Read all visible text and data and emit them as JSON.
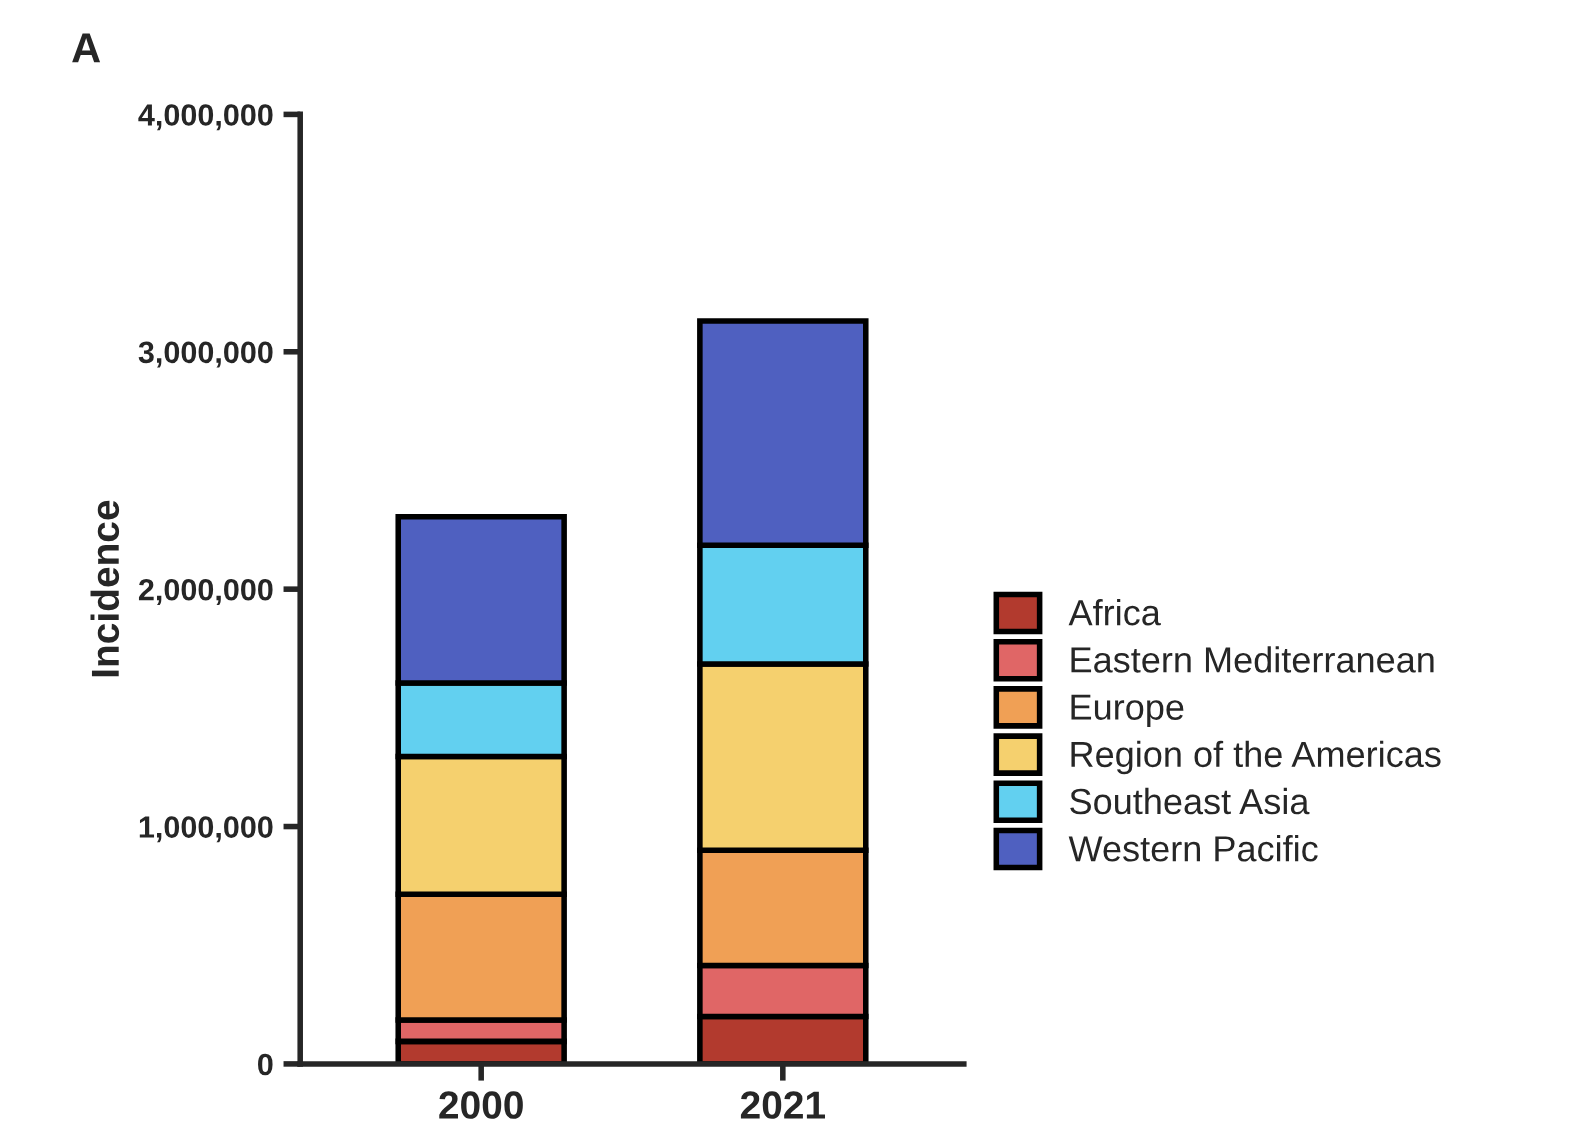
{
  "chart_data": {
    "type": "bar",
    "title": "A",
    "ylabel": "Incidence",
    "categories": [
      "2000",
      "2021"
    ],
    "stacked": true,
    "series": [
      {
        "name": "Africa",
        "color": "#b23a2e",
        "values": [
          95000,
          200000
        ]
      },
      {
        "name": "Eastern Mediterranean",
        "color": "#e06666",
        "values": [
          90000,
          215000
        ]
      },
      {
        "name": "Europe",
        "color": "#f0a055",
        "values": [
          530000,
          485000
        ]
      },
      {
        "name": "Region of the Americas",
        "color": "#f5d06e",
        "values": [
          580000,
          785000
        ]
      },
      {
        "name": "Southeast Asia",
        "color": "#62d0f0",
        "values": [
          310000,
          500000
        ]
      },
      {
        "name": "Western Pacific",
        "color": "#4f60c0",
        "values": [
          700000,
          945000
        ]
      }
    ],
    "ylim": [
      0,
      4000000
    ],
    "yticks": [
      {
        "value": 0,
        "label": "0"
      },
      {
        "value": 1000000,
        "label": "1,000,000"
      },
      {
        "value": 2000000,
        "label": "2,000,000"
      },
      {
        "value": 3000000,
        "label": "3,000,000"
      },
      {
        "value": 4000000,
        "label": "4,000,000"
      }
    ],
    "grid": false,
    "legend": "right"
  }
}
